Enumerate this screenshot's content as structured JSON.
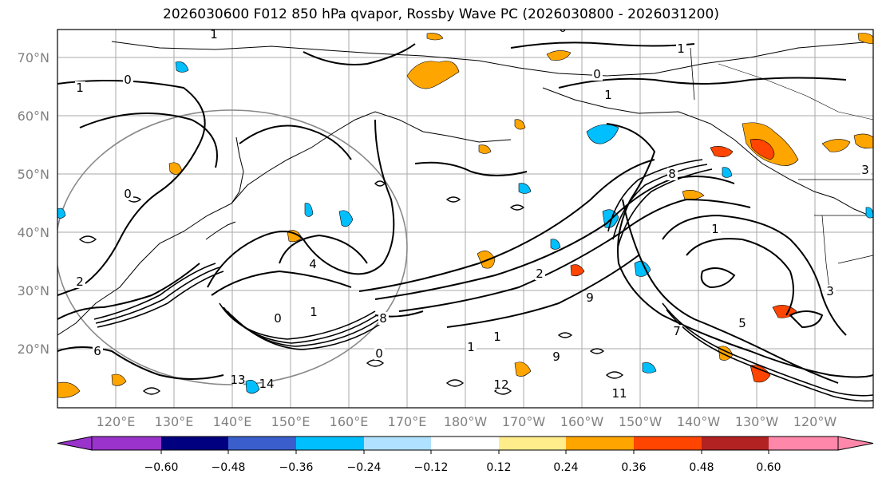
{
  "title": "2026030600 F012 850 hPa qvapor, Rossby Wave PC (2026030800 - 2026031200)",
  "lat_labels": [
    "70°N",
    "60°N",
    "50°N",
    "40°N",
    "30°N",
    "20°N"
  ],
  "lon_labels": [
    "120°E",
    "130°E",
    "140°E",
    "150°E",
    "160°E",
    "170°E",
    "180°W",
    "170°W",
    "160°W",
    "150°W",
    "140°W",
    "130°W",
    "120°W"
  ],
  "colorbar": {
    "colors": [
      "#9933cc",
      "#000080",
      "#3a5fcd",
      "#00bfff",
      "#b0e2ff",
      "#ffffff",
      "#ffec8b",
      "#ffa500",
      "#ff4500",
      "#b22222",
      "#ff88aa"
    ],
    "tick_labels": [
      "−0.60",
      "−0.48",
      "−0.36",
      "−0.24",
      "−0.12",
      "0.12",
      "0.24",
      "0.36",
      "0.48",
      "0.60"
    ]
  },
  "contour_labels": [
    "1",
    "0",
    "1",
    "0",
    "1",
    "0",
    "1",
    "2",
    "4",
    "1",
    "0",
    "3",
    "8",
    "1",
    "0",
    "9",
    "1",
    "11",
    "8",
    "6",
    "1",
    "13",
    "14",
    "9",
    "12",
    "0",
    "2",
    "3",
    "5",
    "7"
  ]
}
